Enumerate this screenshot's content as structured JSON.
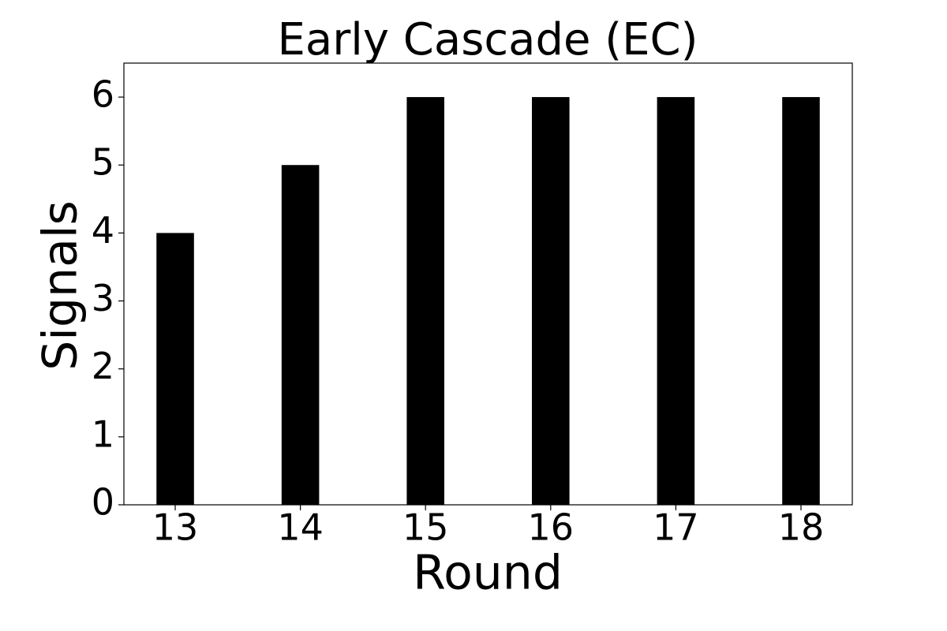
{
  "chart_data": {
    "type": "bar",
    "title": "Early Cascade (EC)",
    "xlabel": "Round",
    "ylabel": "Signals",
    "x": [
      13,
      14,
      15,
      16,
      17,
      18
    ],
    "values": [
      4,
      5,
      6,
      6,
      6,
      6
    ],
    "color": "#000000",
    "xlim": [
      12.59,
      18.41
    ],
    "xticks": [
      13,
      14,
      15,
      16,
      17,
      18
    ],
    "ylim": [
      0,
      6.5
    ],
    "yticks": [
      0,
      1,
      2,
      3,
      4,
      5,
      6
    ],
    "grid": false
  }
}
